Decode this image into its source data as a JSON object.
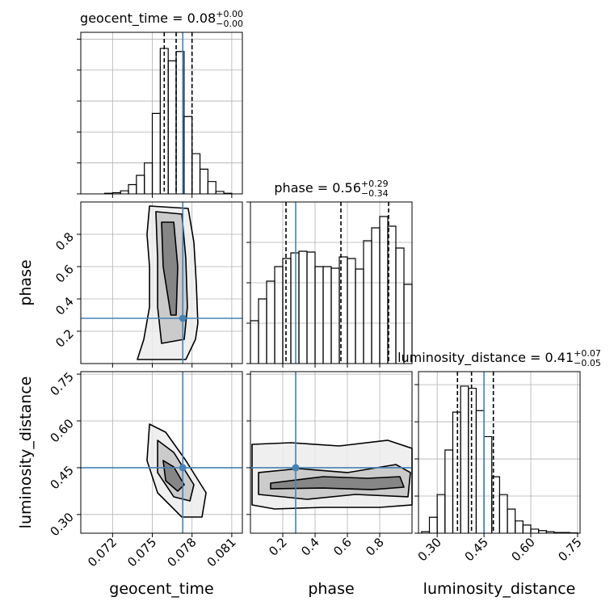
{
  "chart_data": {
    "type": "corner",
    "truth_color": "#4682b4",
    "hist_color": "#000000",
    "contour_color": "#000000",
    "grid": true,
    "parameters": [
      {
        "label": "geocent_time",
        "title": "geocent_time = 0.08",
        "title_sup": "+0.00",
        "title_sub": "−0.00",
        "lim": [
          0.0696,
          0.0818
        ],
        "ticks": [
          0.072,
          0.075,
          0.078,
          0.081
        ],
        "truth": 0.0773,
        "quantiles": [
          0.0759,
          0.0768,
          0.078
        ],
        "hist": {
          "bins": [
            0.0714,
            0.072,
            0.0726,
            0.0732,
            0.0738,
            0.0744,
            0.075,
            0.0756,
            0.0762,
            0.0768,
            0.0774,
            0.078,
            0.0786,
            0.0792,
            0.0798,
            0.0804,
            0.081
          ],
          "counts": [
            0.02,
            0.04,
            0.1,
            0.3,
            0.6,
            1.0,
            2.6,
            4.7,
            4.3,
            4.6,
            2.5,
            1.3,
            0.8,
            0.4,
            0.08,
            0.02
          ],
          "ylim": [
            0,
            5.22
          ],
          "yticks": [
            0,
            1,
            2,
            3,
            4,
            5
          ]
        }
      },
      {
        "label": "phase",
        "title": "phase = 0.56",
        "title_sup": "+0.29",
        "title_sub": "−0.34",
        "lim": [
          0,
          1
        ],
        "ticks": [
          0.2,
          0.4,
          0.6,
          0.8
        ],
        "truth": 0.28,
        "quantiles": [
          0.22,
          0.56,
          0.855
        ],
        "hist": {
          "bins": [
            0,
            0.05,
            0.1,
            0.15,
            0.2,
            0.25,
            0.3,
            0.35,
            0.4,
            0.45,
            0.5,
            0.55,
            0.6,
            0.65,
            0.7,
            0.75,
            0.8,
            0.85,
            0.9,
            0.95,
            1.0
          ],
          "counts": [
            1.06,
            1.6,
            2.04,
            2.4,
            2.6,
            2.74,
            2.78,
            2.76,
            2.4,
            2.4,
            2.36,
            2.64,
            2.6,
            2.34,
            3.04,
            3.36,
            3.64,
            3.4,
            2.86,
            1.96
          ],
          "ylim": [
            0,
            4
          ],
          "yticks": [
            0,
            1,
            2,
            3,
            4
          ]
        }
      },
      {
        "label": "luminosity_distance",
        "title": "luminosity_distance = 0.41",
        "title_sup": "+0.07",
        "title_sub": "−0.05",
        "lim": [
          0.24,
          0.758
        ],
        "ticks": [
          {
            "value": 0.3,
            "label": "0.30"
          },
          0.45,
          {
            "value": 0.6,
            "label": "0.60"
          },
          0.75
        ],
        "truth": 0.45,
        "quantiles": [
          0.365,
          0.41,
          0.48
        ],
        "hist": {
          "bins": [
            0.25,
            0.275,
            0.3,
            0.325,
            0.35,
            0.375,
            0.4,
            0.425,
            0.45,
            0.475,
            0.5,
            0.525,
            0.55,
            0.575,
            0.6,
            0.625,
            0.65,
            0.675,
            0.7,
            0.725,
            0.75
          ],
          "counts": [
            0.04,
            0.43,
            1.04,
            2.24,
            3.26,
            3.96,
            3.9,
            3.3,
            2.6,
            1.52,
            1.04,
            0.65,
            0.33,
            0.22,
            0.11,
            0.07,
            0.04,
            0.02,
            0.02,
            0.01
          ],
          "ylim": [
            0,
            4.35
          ],
          "yticks": [
            0,
            1,
            2,
            3,
            4
          ]
        }
      }
    ],
    "pairs": [
      {
        "contours": [
          {
            "x": [
              0.07479,
              0.07771,
              0.07814,
              0.07832,
              0.07844,
              0.07826,
              0.07753,
              0.07387,
              0.07436,
              0.07479,
              0.07479,
              0.0746
            ],
            "y": [
              0.975,
              0.96,
              0.75,
              0.5,
              0.25,
              0.15,
              0.025,
              0.025,
              0.15,
              0.35,
              0.6,
              0.8
            ]
          },
          {
            "x": [
              0.07527,
              0.07723,
              0.07753,
              0.07765,
              0.07741,
              0.0757,
              0.0754,
              0.0754
            ],
            "y": [
              0.94,
              0.925,
              0.65,
              0.35,
              0.15,
              0.125,
              0.35,
              0.65
            ]
          },
          {
            "x": [
              0.0757,
              0.07662,
              0.07692,
              0.0768,
              0.0764,
              0.07582
            ],
            "y": [
              0.875,
              0.875,
              0.6,
              0.3,
              0.3,
              0.6
            ]
          }
        ]
      },
      {
        "contours": [
          {
            "x": [
              0.07479,
              0.07601,
              0.07753,
              0.07906,
              0.07875,
              0.07723,
              0.0754,
              0.0746
            ],
            "y": [
              0.5897,
              0.5638,
              0.4731,
              0.3695,
              0.2918,
              0.2918,
              0.3695,
              0.4731
            ]
          },
          {
            "x": [
              0.0754,
              0.07662,
              0.07814,
              0.07784,
              0.07662,
              0.0754
            ],
            "y": [
              0.5378,
              0.499,
              0.3954,
              0.3436,
              0.3566,
              0.4343
            ]
          },
          {
            "x": [
              0.07582,
              0.07662,
              0.07741,
              0.07692,
              0.07601
            ],
            "y": [
              0.4731,
              0.4524,
              0.3954,
              0.3747,
              0.4084
            ]
          }
        ]
      },
      {
        "contours": [
          {
            "x": [
              0.01,
              0.25,
              0.55,
              0.85,
              1.0,
              1.0,
              0.8,
              0.45,
              0.15,
              0.01
            ],
            "y": [
              0.5249,
              0.5301,
              0.5197,
              0.5379,
              0.512,
              0.3307,
              0.3229,
              0.3229,
              0.3177,
              0.3307
            ]
          },
          {
            "x": [
              0.05,
              0.3,
              0.6,
              0.9,
              0.99,
              0.975,
              0.65,
              0.35,
              0.05
            ],
            "y": [
              0.4343,
              0.4472,
              0.4343,
              0.4602,
              0.4343,
              0.3566,
              0.3643,
              0.3488,
              0.3643
            ]
          },
          {
            "x": [
              0.125,
              0.45,
              0.725,
              0.925,
              0.95,
              0.75,
              0.45,
              0.125
            ],
            "y": [
              0.4006,
              0.4213,
              0.4161,
              0.4213,
              0.3876,
              0.3798,
              0.385,
              0.3824
            ]
          }
        ]
      }
    ]
  }
}
